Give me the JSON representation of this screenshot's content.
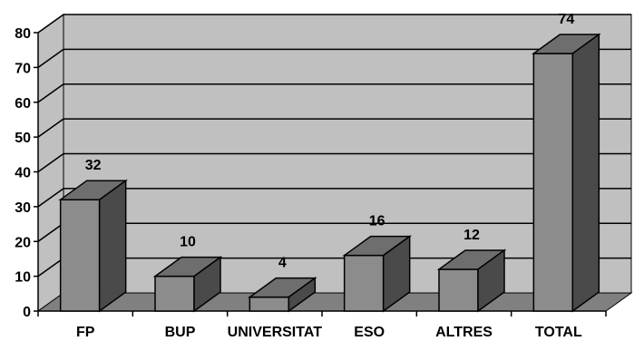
{
  "chart_data": {
    "type": "bar",
    "categories": [
      "FP",
      "BUP",
      "UNIVERSITAT",
      "ESO",
      "ALTRES",
      "TOTAL"
    ],
    "values": [
      32,
      10,
      4,
      16,
      12,
      74
    ],
    "data_labels": [
      "32",
      "10",
      "4",
      "16",
      "12",
      "74"
    ],
    "title": "",
    "xlabel": "",
    "ylabel": "",
    "ylim": [
      0,
      80
    ],
    "yticks": [
      0,
      10,
      20,
      30,
      40,
      50,
      60,
      70,
      80
    ],
    "grid": true,
    "style": "3d",
    "legend": "none"
  },
  "colors": {
    "wall": "#c0c0c0",
    "floor": "#808080",
    "bar_front": "#8c8c8c",
    "bar_top": "#6e6e6e",
    "bar_side": "#4a4a4a",
    "gridline": "#000000"
  }
}
